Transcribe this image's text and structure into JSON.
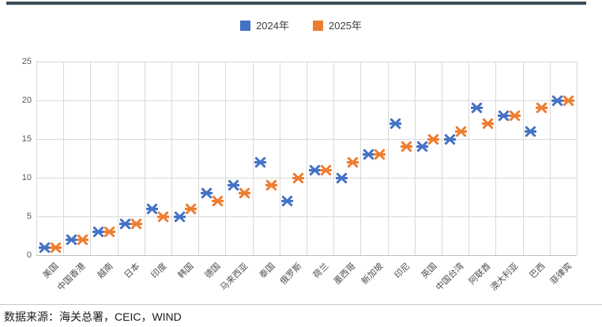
{
  "chart": {
    "footer": "数据来源：海关总署，CEIC，WIND"
  },
  "chart_data": {
    "type": "scatter",
    "marker_style": "x-asterisk",
    "title": "",
    "xlabel": "",
    "ylabel": "",
    "categories": [
      "美国",
      "中国香港",
      "越南",
      "日本",
      "印度",
      "韩国",
      "德国",
      "马来西亚",
      "泰国",
      "俄罗斯",
      "荷兰",
      "墨西哥",
      "新加坡",
      "印尼",
      "英国",
      "中国台湾",
      "阿联酋",
      "澳大利亚",
      "巴西",
      "菲律宾"
    ],
    "series": [
      {
        "name": "2024年",
        "color": "#4472C4",
        "values": [
          1,
          2,
          3,
          4,
          6,
          5,
          8,
          9,
          12,
          7,
          11,
          10,
          13,
          17,
          14,
          15,
          19,
          18,
          16,
          20
        ]
      },
      {
        "name": "2025年",
        "color": "#ED7D31",
        "values": [
          1,
          2,
          3,
          4,
          5,
          6,
          7,
          8,
          9,
          10,
          11,
          12,
          13,
          14,
          15,
          16,
          17,
          18,
          19,
          20
        ]
      }
    ],
    "ylim": [
      0,
      25
    ],
    "yticks": [
      0,
      5,
      10,
      15,
      20,
      25
    ],
    "grid": true,
    "legend_position": "top-center",
    "gridline_color": "#d9d9d9",
    "accent_bar_color": "#3c4c56"
  }
}
